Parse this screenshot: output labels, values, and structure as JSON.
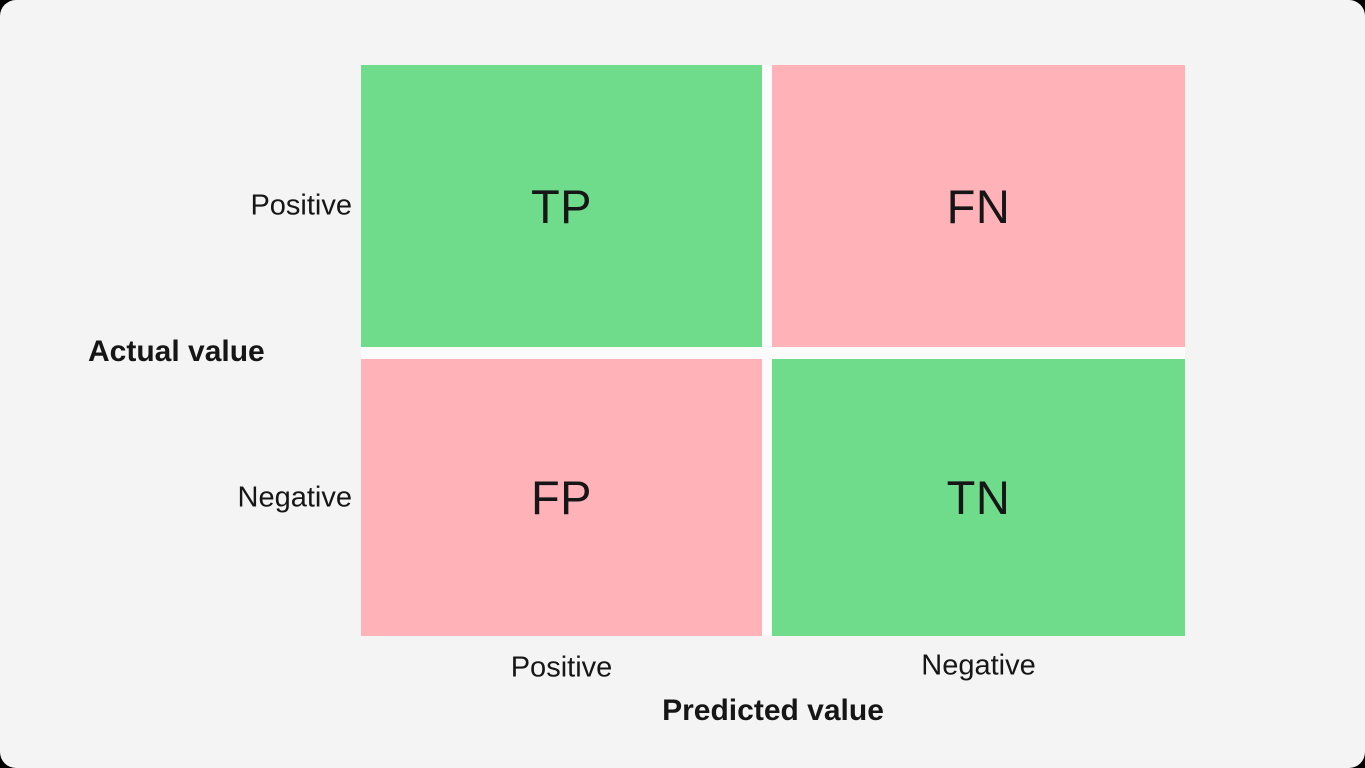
{
  "page": {
    "background": "#f4f4f4",
    "corner_color": "#000000",
    "text_color": "#161616"
  },
  "matrix": {
    "y_axis_title": "Actual value",
    "x_axis_title": "Predicted value",
    "row_labels": [
      "Positive",
      "Negative"
    ],
    "col_labels": [
      "Positive",
      "Negative"
    ],
    "cells": [
      {
        "label": "TP",
        "color": "#6fdc8c"
      },
      {
        "label": "FN",
        "color": "#ffb3b8"
      },
      {
        "label": "FP",
        "color": "#ffb3b8"
      },
      {
        "label": "TN",
        "color": "#6fdc8c"
      }
    ],
    "colors": {
      "green": "#6fdc8c",
      "pink": "#ffb3b8"
    }
  },
  "chart_data": {
    "type": "heatmap",
    "title": "",
    "xlabel": "Predicted value",
    "ylabel": "Actual value",
    "x_categories": [
      "Positive",
      "Negative"
    ],
    "y_categories": [
      "Positive",
      "Negative"
    ],
    "cell_labels": [
      [
        "TP",
        "FN"
      ],
      [
        "FP",
        "TN"
      ]
    ],
    "cell_colors": [
      [
        "#6fdc8c",
        "#ffb3b8"
      ],
      [
        "#ffb3b8",
        "#6fdc8c"
      ]
    ],
    "legend": "off",
    "grid": "off"
  }
}
